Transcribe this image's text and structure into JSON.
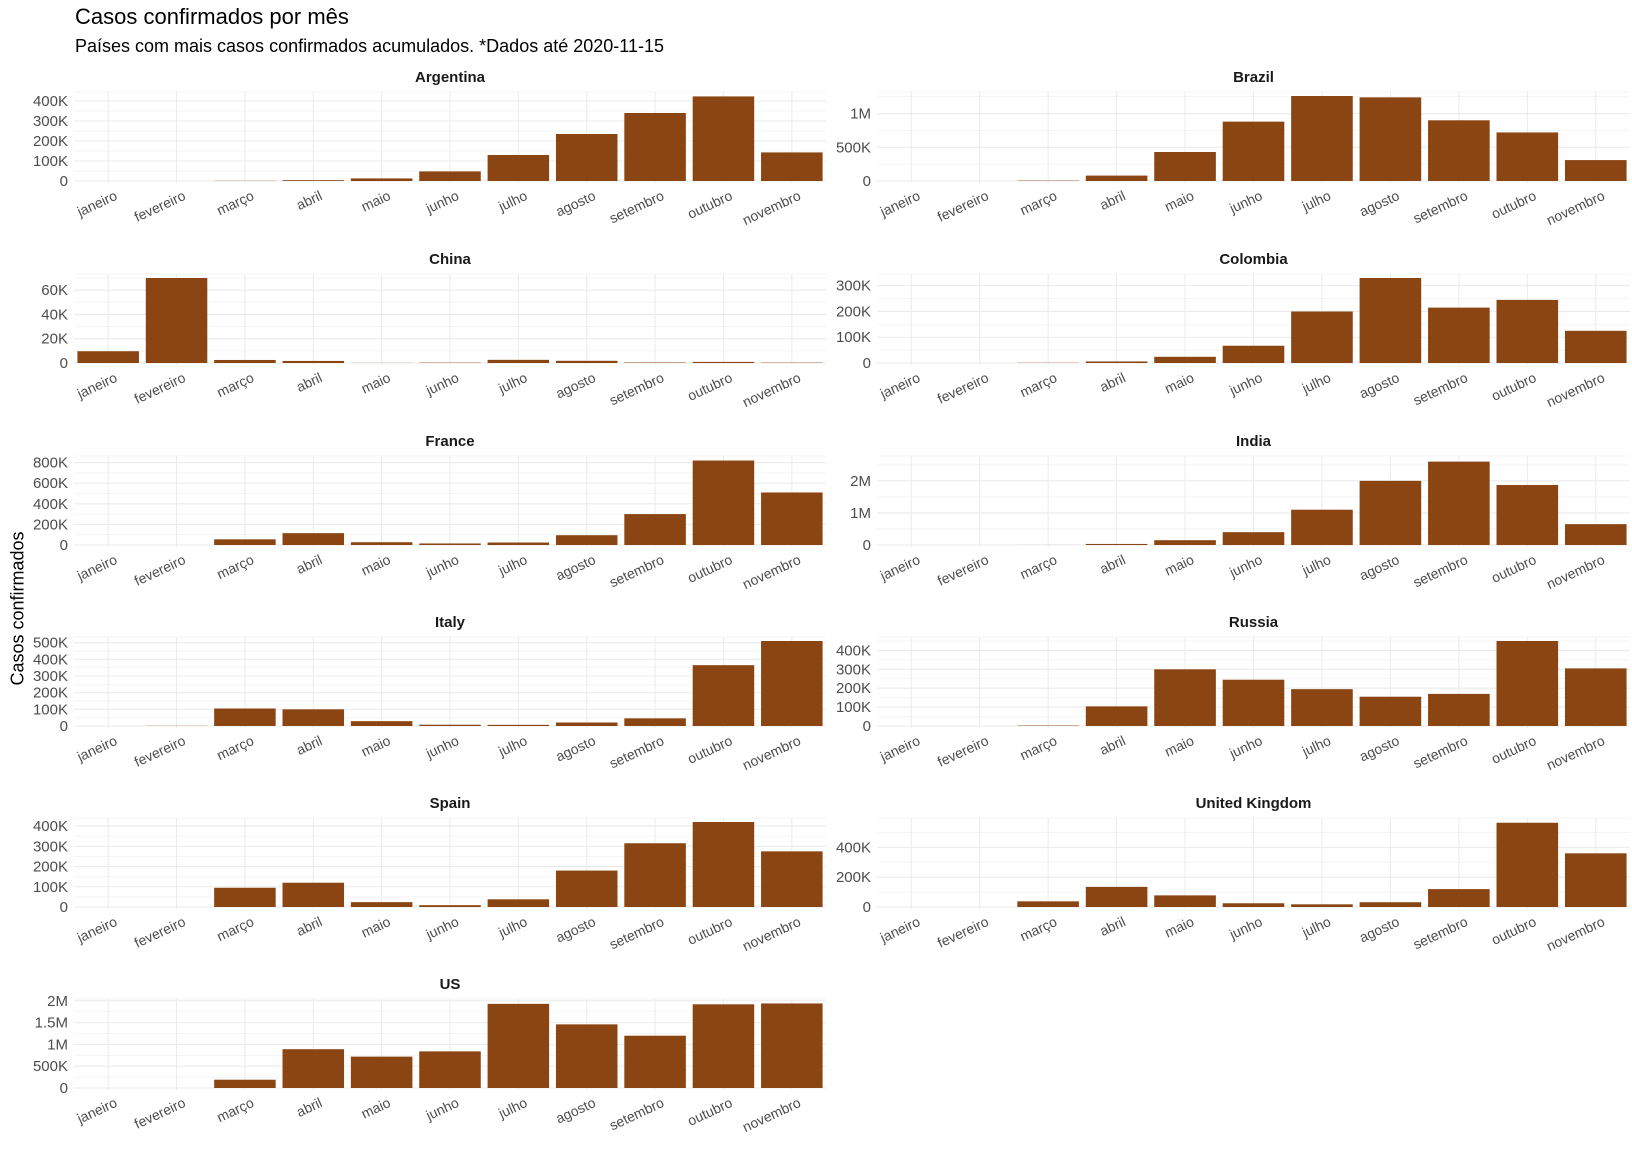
{
  "title": "Casos confirmados por mês",
  "subtitle": "Países com mais casos confirmados acumulados. *Dados até 2020-11-15",
  "chart_data": {
    "type": "bar",
    "layout": "facet-grid-2-columns",
    "ylabel": "Casos confirmados",
    "xlabel": "",
    "bar_color": "#8B4513",
    "grid": true,
    "months": [
      "janeiro",
      "fevereiro",
      "março",
      "abril",
      "maio",
      "junho",
      "julho",
      "agosto",
      "setembro",
      "outubro",
      "novembro"
    ],
    "panels": [
      {
        "name": "Argentina",
        "ylim": [
          0,
          425000
        ],
        "ticks": [
          0,
          100000,
          200000,
          300000,
          400000
        ],
        "tick_labels": [
          "0",
          "100K",
          "200K",
          "300K",
          "400K"
        ],
        "values": [
          0,
          0,
          1000,
          4000,
          13000,
          48000,
          130000,
          235000,
          340000,
          423000,
          143000
        ]
      },
      {
        "name": "Brazil",
        "ylim": [
          0,
          1260000
        ],
        "ticks": [
          0,
          500000,
          1000000
        ],
        "tick_labels": [
          "0",
          "500K",
          "1M"
        ],
        "values": [
          0,
          2,
          5700,
          80000,
          430000,
          880000,
          1260000,
          1240000,
          900000,
          720000,
          310000
        ]
      },
      {
        "name": "China",
        "ylim": [
          0,
          70000
        ],
        "ticks": [
          0,
          20000,
          40000,
          60000
        ],
        "tick_labels": [
          "0",
          "20K",
          "40K",
          "60K"
        ],
        "values": [
          9700,
          70000,
          2500,
          1700,
          100,
          300,
          2600,
          1800,
          400,
          900,
          300
        ]
      },
      {
        "name": "Colombia",
        "ylim": [
          0,
          330000
        ],
        "ticks": [
          0,
          100000,
          200000,
          300000
        ],
        "tick_labels": [
          "0",
          "100K",
          "200K",
          "300K"
        ],
        "values": [
          0,
          0,
          900,
          6000,
          24000,
          67000,
          200000,
          330000,
          215000,
          245000,
          125000
        ]
      },
      {
        "name": "France",
        "ylim": [
          0,
          825000
        ],
        "ticks": [
          0,
          200000,
          400000,
          600000,
          800000
        ],
        "tick_labels": [
          "0",
          "200K",
          "400K",
          "600K",
          "800K"
        ],
        "values": [
          5,
          95,
          55000,
          115000,
          27000,
          15000,
          24000,
          95000,
          300000,
          820000,
          510000
        ]
      },
      {
        "name": "India",
        "ylim": [
          0,
          2650000
        ],
        "ticks": [
          0,
          1000000,
          2000000
        ],
        "tick_labels": [
          "0",
          "1M",
          "2M"
        ],
        "values": [
          1,
          2,
          1400,
          33000,
          150000,
          400000,
          1100000,
          2000000,
          2600000,
          1870000,
          650000
        ]
      },
      {
        "name": "Italy",
        "ylim": [
          0,
          510000
        ],
        "ticks": [
          0,
          100000,
          200000,
          300000,
          400000,
          500000
        ],
        "tick_labels": [
          "0",
          "100K",
          "200K",
          "300K",
          "400K",
          "500K"
        ],
        "values": [
          3,
          1100,
          105000,
          100000,
          29000,
          7700,
          6900,
          21000,
          46000,
          365000,
          510000
        ]
      },
      {
        "name": "Russia",
        "ylim": [
          0,
          450000
        ],
        "ticks": [
          0,
          100000,
          200000,
          300000,
          400000
        ],
        "tick_labels": [
          "0",
          "100K",
          "200K",
          "300K",
          "400K"
        ],
        "values": [
          2,
          0,
          2300,
          104000,
          300000,
          245000,
          195000,
          155000,
          170000,
          450000,
          305000
        ]
      },
      {
        "name": "Spain",
        "ylim": [
          0,
          420000
        ],
        "ticks": [
          0,
          100000,
          200000,
          300000,
          400000
        ],
        "tick_labels": [
          "0",
          "100K",
          "200K",
          "300K",
          "400K"
        ],
        "values": [
          0,
          45,
          95000,
          120000,
          24000,
          9000,
          38000,
          180000,
          315000,
          420000,
          275000
        ]
      },
      {
        "name": "United Kingdom",
        "ylim": [
          0,
          570000
        ],
        "ticks": [
          0,
          200000,
          400000
        ],
        "tick_labels": [
          "0",
          "200K",
          "400K"
        ],
        "values": [
          0,
          20,
          38000,
          135000,
          78000,
          25000,
          18000,
          32000,
          120000,
          565000,
          360000
        ]
      },
      {
        "name": "US",
        "ylim": [
          0,
          1950000
        ],
        "ticks": [
          0,
          500000,
          1000000,
          1500000,
          2000000
        ],
        "tick_labels": [
          "0",
          "500K",
          "1M",
          "1.5M",
          "2M"
        ],
        "values": [
          7,
          60,
          190000,
          890000,
          720000,
          840000,
          1930000,
          1460000,
          1200000,
          1920000,
          1940000
        ]
      }
    ]
  }
}
